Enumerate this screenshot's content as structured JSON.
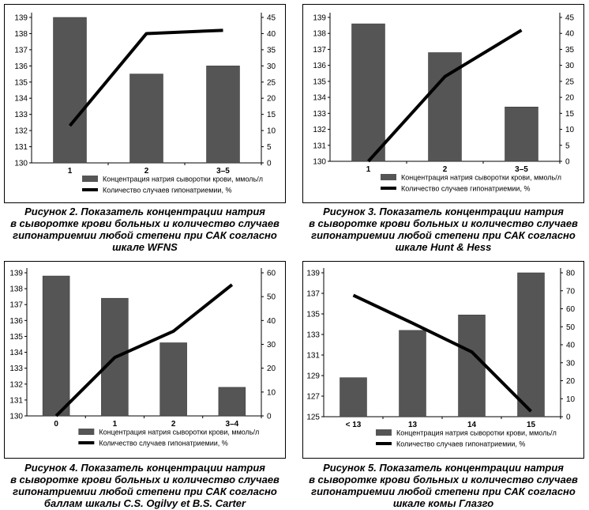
{
  "chart_data": [
    {
      "type": "bar",
      "categories": [
        "1",
        "2",
        "3–5"
      ],
      "series": [
        {
          "name": "Концентрация натрия сыворотки крови, ммоль/л",
          "type": "bar",
          "axis": "left",
          "values": [
            139,
            135.5,
            136
          ]
        },
        {
          "name": "Количество случаев гипонатриемии, %",
          "type": "line",
          "axis": "right",
          "values": [
            11.5,
            40,
            41
          ]
        }
      ],
      "y_left_ticks": [
        130,
        131,
        132,
        133,
        134,
        135,
        136,
        137,
        138,
        139
      ],
      "ylim_left": [
        130,
        139
      ],
      "y_right_ticks": [
        0,
        5,
        10,
        15,
        20,
        25,
        30,
        35,
        40,
        45
      ],
      "ylim_right": [
        0,
        45
      ],
      "legend_position": "bottom",
      "caption": [
        "Рисунок 2. Показатель концентрации натрия",
        "в сыворотке крови больных и количество случаев",
        "гипонатриемии любой степени при САК согласно",
        "шкале WFNS"
      ]
    },
    {
      "type": "bar",
      "categories": [
        "1",
        "2",
        "3–5"
      ],
      "series": [
        {
          "name": "Концентрация натрия сыворотки крови, ммоль/л",
          "type": "bar",
          "axis": "left",
          "values": [
            138.6,
            136.8,
            133.4
          ]
        },
        {
          "name": "Количество случаев гипонатриемии, %",
          "type": "line",
          "axis": "right",
          "values": [
            0,
            26.5,
            41
          ]
        }
      ],
      "y_left_ticks": [
        130,
        131,
        132,
        133,
        134,
        135,
        136,
        137,
        138,
        139
      ],
      "ylim_left": [
        130,
        139
      ],
      "y_right_ticks": [
        0,
        5,
        10,
        15,
        20,
        25,
        30,
        35,
        40,
        45
      ],
      "ylim_right": [
        0,
        45
      ],
      "legend_position": "bottom",
      "caption": [
        "Рисунок 3. Показатель концентрации натрия",
        "в сыворотке крови больных и количество случаев",
        "гипонатриемии любой степени при САК согласно",
        "шкале Hunt & Hess"
      ]
    },
    {
      "type": "bar",
      "categories": [
        "0",
        "1",
        "2",
        "3–4"
      ],
      "series": [
        {
          "name": "Концентрация натрия сыворотки крови, ммоль/л",
          "type": "bar",
          "axis": "left",
          "values": [
            138.8,
            137.4,
            134.6,
            131.8
          ]
        },
        {
          "name": "Количество случаев гипонатриемии, %",
          "type": "line",
          "axis": "right",
          "values": [
            0,
            24.5,
            35.5,
            55
          ]
        }
      ],
      "y_left_ticks": [
        130,
        131,
        132,
        133,
        134,
        135,
        136,
        137,
        138,
        139
      ],
      "ylim_left": [
        130,
        139
      ],
      "y_right_ticks": [
        0,
        10,
        20,
        30,
        40,
        50,
        60
      ],
      "ylim_right": [
        0,
        60
      ],
      "legend_position": "bottom",
      "caption": [
        "Рисунок 4. Показатель концентрации натрия",
        "в сыворотке крови больных и количество случаев",
        "гипонатриемии любой степени при САК согласно",
        "баллам шкалы C.S. Ogilvy et B.S. Carter"
      ]
    },
    {
      "type": "bar",
      "categories": [
        "< 13",
        "13",
        "14",
        "15"
      ],
      "series": [
        {
          "name": "Концентрация натрия сыворотки крови, ммоль/л",
          "type": "bar",
          "axis": "left",
          "values": [
            128.8,
            133.4,
            134.9,
            139
          ]
        },
        {
          "name": "Количество случаев гипонатриемии, %",
          "type": "line",
          "axis": "right",
          "values": [
            67.5,
            52,
            36,
            3
          ]
        }
      ],
      "y_left_ticks": [
        125,
        127,
        129,
        131,
        133,
        135,
        137,
        139
      ],
      "ylim_left": [
        125,
        139
      ],
      "y_right_ticks": [
        0,
        10,
        20,
        30,
        40,
        50,
        60,
        70,
        80
      ],
      "ylim_right": [
        0,
        80
      ],
      "legend_position": "bottom",
      "caption": [
        "Рисунок 5. Показатель концентрации натрия",
        "в сыворотке крови больных и количество случаев",
        "гипонатриемии любой степени при САК согласно",
        "шкале комы Глазго"
      ]
    }
  ]
}
